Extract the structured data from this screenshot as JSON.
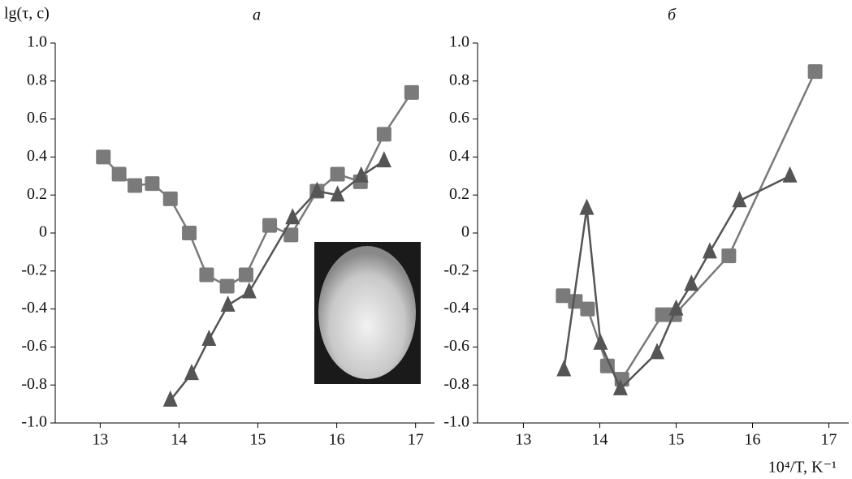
{
  "chart_data": [
    {
      "type": "line",
      "title": "а",
      "ylabel": "lg(τ, c)",
      "xlim": [
        12.43,
        17.24
      ],
      "xticks": [
        13,
        14,
        15,
        16,
        17
      ],
      "ylim": [
        -1.0,
        1.0
      ],
      "yticks": [
        {
          "value": -1.0,
          "label": "-1.0"
        },
        -0.8,
        -0.6,
        -0.4,
        -0.2,
        0,
        0.2,
        0.4,
        0.6,
        0.8,
        {
          "value": 1.0,
          "label": "1.0"
        }
      ],
      "series": [
        {
          "marker": "square",
          "color": "#7a7a7a",
          "x": [
            13.04,
            13.24,
            13.44,
            13.66,
            13.89,
            14.13,
            14.35,
            14.61,
            14.85,
            15.15,
            15.42,
            15.75,
            16.01,
            16.3,
            16.6,
            16.95
          ],
          "values": [
            0.4,
            0.31,
            0.25,
            0.26,
            0.18,
            0.0,
            -0.22,
            -0.28,
            -0.22,
            0.04,
            -0.01,
            0.22,
            0.31,
            0.27,
            0.52,
            0.74
          ]
        },
        {
          "marker": "triangle",
          "color": "#555555",
          "x": [
            13.89,
            14.16,
            14.38,
            14.62,
            14.89,
            15.44,
            15.75,
            16.01,
            16.31,
            16.6
          ],
          "values": [
            -0.88,
            -0.74,
            -0.56,
            -0.38,
            -0.31,
            0.08,
            0.22,
            0.2,
            0.3,
            0.38
          ]
        }
      ]
    },
    {
      "type": "line",
      "title": "б",
      "xlabel": "10⁴/T, K⁻¹",
      "xlim": [
        12.4,
        17.26
      ],
      "xticks": [
        13,
        14,
        15,
        16,
        17
      ],
      "ylim": [
        -1.0,
        1.0
      ],
      "yticks": [
        {
          "value": -1.0,
          "label": "-1.0"
        },
        -0.8,
        -0.6,
        -0.4,
        -0.2,
        0,
        0.2,
        0.4,
        0.6,
        0.8,
        {
          "value": 1.0,
          "label": "1.0"
        }
      ],
      "series": [
        {
          "marker": "square",
          "color": "#7a7a7a",
          "x": [
            13.52,
            13.68,
            13.84,
            14.1,
            14.29,
            14.82,
            14.98,
            15.69,
            16.82
          ],
          "values": [
            -0.33,
            -0.36,
            -0.4,
            -0.7,
            -0.77,
            -0.43,
            -0.43,
            -0.12,
            0.85
          ]
        },
        {
          "marker": "triangle",
          "color": "#555555",
          "x": [
            13.53,
            13.83,
            14.01,
            14.27,
            14.75,
            15.0,
            15.2,
            15.44,
            15.83,
            16.49
          ],
          "values": [
            -0.72,
            0.13,
            -0.58,
            -0.82,
            -0.63,
            -0.4,
            -0.27,
            -0.1,
            0.17,
            0.3
          ]
        }
      ]
    }
  ]
}
